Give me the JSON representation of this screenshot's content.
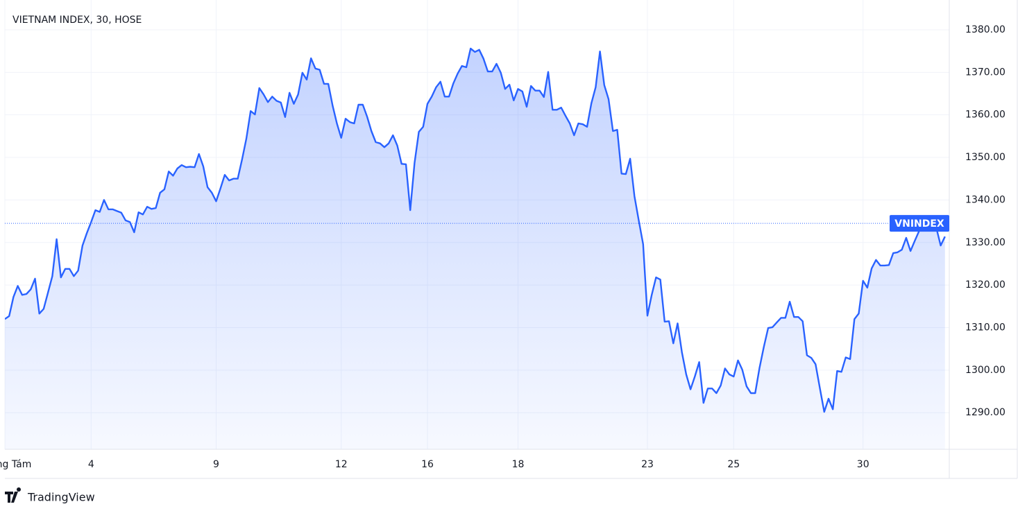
{
  "chart_data": {
    "type": "area",
    "title": "VIETNAM INDEX, 30, HOSE",
    "brand": "TradingView",
    "series": [
      {
        "name": "VNINDEX",
        "color": "#2962ff",
        "values": [
          1312,
          1312.7,
          1317.2,
          1319.8,
          1317.7,
          1317.9,
          1319,
          1321.5,
          1313.3,
          1314.4,
          1318.2,
          1322.1,
          1330.8,
          1321.8,
          1323.8,
          1323.8,
          1322.1,
          1323.4,
          1329.3,
          1332.2,
          1334.8,
          1337.6,
          1337.2,
          1340,
          1337.8,
          1337.8,
          1337.4,
          1337,
          1335.2,
          1334.8,
          1332.4,
          1337.1,
          1336.6,
          1338.4,
          1337.9,
          1338.1,
          1341.7,
          1342.5,
          1346.7,
          1345.7,
          1347.4,
          1348.2,
          1347.7,
          1347.8,
          1347.7,
          1350.8,
          1347.9,
          1343,
          1341.7,
          1339.7,
          1342.7,
          1345.9,
          1344.6,
          1345,
          1345,
          1349.5,
          1354.4,
          1360.9,
          1360.1,
          1366.3,
          1364.8,
          1363,
          1364.3,
          1363.3,
          1362.9,
          1359.5,
          1365.2,
          1362.6,
          1364.8,
          1369.9,
          1368.3,
          1373.3,
          1370.9,
          1370.6,
          1367.3,
          1367.3,
          1362.2,
          1358,
          1354.6,
          1359.1,
          1358.3,
          1358,
          1362.4,
          1362.4,
          1359.6,
          1356.2,
          1353.6,
          1353.3,
          1352.4,
          1353.3,
          1355.2,
          1352.8,
          1348.5,
          1348.4,
          1337.6,
          1348.7,
          1356,
          1357.2,
          1362.6,
          1364.3,
          1366.5,
          1367.8,
          1364.3,
          1364.3,
          1367.4,
          1369.7,
          1371.5,
          1371.2,
          1375.6,
          1374.8,
          1375.3,
          1373.2,
          1370.2,
          1370.2,
          1372,
          1369.9,
          1366.1,
          1367.1,
          1363.4,
          1366.1,
          1365.5,
          1361.9,
          1366.8,
          1365.7,
          1365.7,
          1364.2,
          1370.1,
          1361.2,
          1361.2,
          1361.7,
          1359.8,
          1358,
          1355.2,
          1358,
          1357.8,
          1357.2,
          1362.7,
          1366.5,
          1374.9,
          1367,
          1363.7,
          1356.2,
          1356.5,
          1346.2,
          1346.1,
          1349.7,
          1340.9,
          1335.2,
          1329.6,
          1312.8,
          1317.7,
          1321.8,
          1321.3,
          1311.4,
          1311.5,
          1306.3,
          1311,
          1304.2,
          1299,
          1295.5,
          1298.5,
          1301.9,
          1292.3,
          1295.7,
          1295.7,
          1294.6,
          1296.4,
          1300.4,
          1299,
          1298.5,
          1302.3,
          1300.1,
          1296.2,
          1294.6,
          1294.6,
          1300.6,
          1305.5,
          1309.9,
          1310.1,
          1311.2,
          1312.3,
          1312.3,
          1316.1,
          1312.5,
          1312.5,
          1311.5,
          1303.5,
          1302.9,
          1301.4,
          1295.7,
          1290.2,
          1293.3,
          1290.8,
          1299.8,
          1299.6,
          1303,
          1302.6,
          1312,
          1313.3,
          1321,
          1319.4,
          1323.9,
          1325.9,
          1324.6,
          1324.6,
          1324.7,
          1327.5,
          1327.7,
          1328.3,
          1331.1,
          1328,
          1330.4,
          1332.7,
          1333.9,
          1334.5,
          1334.5,
          1333.4,
          1329.3,
          1331.4
        ]
      }
    ],
    "price_line": 1334.5,
    "xlim": [
      0,
      219
    ],
    "xticks": [
      {
        "value": 0,
        "label": "Tháng Tám"
      },
      {
        "value": 20,
        "label": "4"
      },
      {
        "value": 49,
        "label": "9"
      },
      {
        "value": 78,
        "label": "12"
      },
      {
        "value": 98,
        "label": "16"
      },
      {
        "value": 119,
        "label": "18"
      },
      {
        "value": 149,
        "label": "23"
      },
      {
        "value": 169,
        "label": "25"
      },
      {
        "value": 199,
        "label": "30"
      }
    ],
    "ylim": [
      1281.4,
      1387
    ],
    "yticks": [
      {
        "value": 1290,
        "label": "1290.00"
      },
      {
        "value": 1300,
        "label": "1300.00"
      },
      {
        "value": 1310,
        "label": "1310.00"
      },
      {
        "value": 1320,
        "label": "1320.00"
      },
      {
        "value": 1330,
        "label": "1330.00"
      },
      {
        "value": 1340,
        "label": "1340.00"
      },
      {
        "value": 1350,
        "label": "1350.00"
      },
      {
        "value": 1360,
        "label": "1360.00"
      },
      {
        "value": 1370,
        "label": "1370.00"
      },
      {
        "value": 1380,
        "label": "1380.00"
      }
    ],
    "grid": true
  }
}
